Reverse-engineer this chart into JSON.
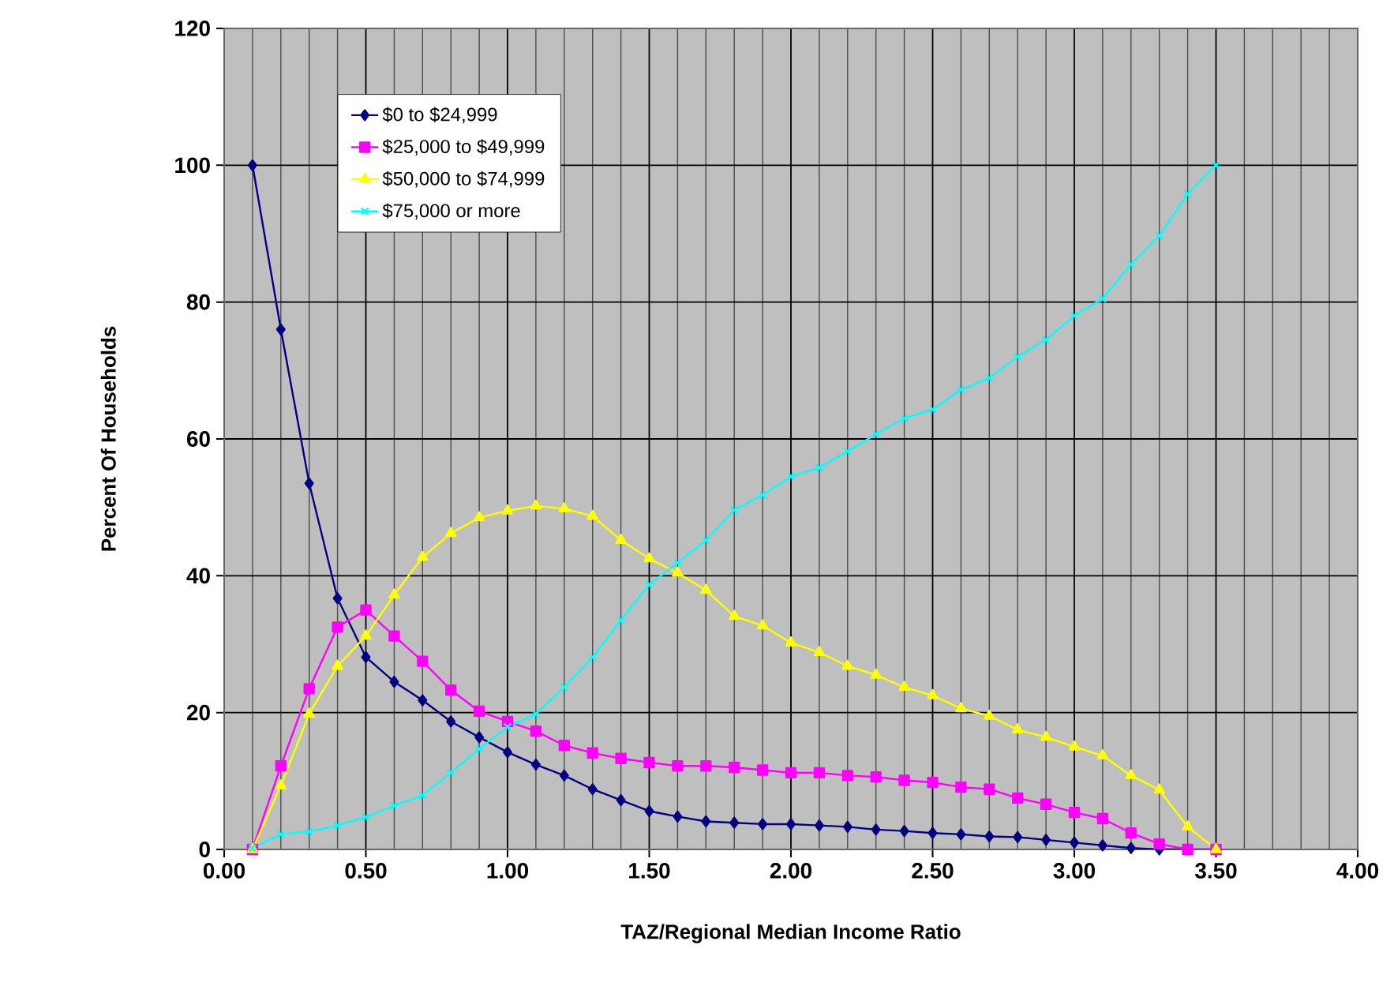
{
  "chart_data": {
    "type": "line",
    "xlabel": "TAZ/Regional Median Income Ratio",
    "ylabel": "Percent Of Households",
    "x": [
      0.1,
      0.2,
      0.3,
      0.4,
      0.5,
      0.6,
      0.7,
      0.8,
      0.9,
      1.0,
      1.1,
      1.2,
      1.3,
      1.4,
      1.5,
      1.6,
      1.7,
      1.8,
      1.9,
      2.0,
      2.1,
      2.2,
      2.3,
      2.4,
      2.5,
      2.6,
      2.7,
      2.8,
      2.9,
      3.0,
      3.1,
      3.2,
      3.3,
      3.4,
      3.5
    ],
    "series": [
      {
        "name": "$0 to $24,999",
        "color": "#000080",
        "marker": "diamond",
        "values": [
          100,
          76,
          53.5,
          36.7,
          28.1,
          24.5,
          21.8,
          18.7,
          16.4,
          14.2,
          12.4,
          10.8,
          8.8,
          7.2,
          5.6,
          4.8,
          4.1,
          3.9,
          3.7,
          3.7,
          3.5,
          3.3,
          2.9,
          2.7,
          2.4,
          2.2,
          1.9,
          1.8,
          1.4,
          1.0,
          0.6,
          0.2,
          0,
          0,
          0
        ]
      },
      {
        "name": "$25,000 to $49,999",
        "color": "#ff00ff",
        "marker": "square",
        "values": [
          0,
          12.2,
          23.5,
          32.5,
          35,
          31.2,
          27.5,
          23.3,
          20.2,
          18.7,
          17.3,
          15.2,
          14.1,
          13.3,
          12.7,
          12.2,
          12.2,
          12,
          11.6,
          11.2,
          11.2,
          10.8,
          10.6,
          10.1,
          9.8,
          9.1,
          8.8,
          7.5,
          6.6,
          5.4,
          4.5,
          2.4,
          0.8,
          0,
          0
        ]
      },
      {
        "name": "$50,000 to $74,999",
        "color": "#ffff00",
        "marker": "triangle",
        "values": [
          0,
          9.3,
          19.8,
          26.8,
          31.2,
          37.2,
          42.7,
          46.2,
          48.5,
          49.5,
          50.2,
          49.8,
          48.7,
          45.2,
          42.5,
          40.4,
          37.9,
          34.1,
          32.7,
          30.2,
          28.8,
          26.8,
          25.5,
          23.7,
          22.5,
          20.6,
          19.5,
          17.5,
          16.4,
          15,
          13.7,
          10.8,
          8.7,
          3.3,
          0
        ]
      },
      {
        "name": "$75,000 or more",
        "color": "#00ffff",
        "marker": "cross",
        "values": [
          0.2,
          2.2,
          2.6,
          3.5,
          4.7,
          6.4,
          7.9,
          11.2,
          14.7,
          17.9,
          19.8,
          23.7,
          28.1,
          33.5,
          38.7,
          41.9,
          45.2,
          49.6,
          51.8,
          54.5,
          55.8,
          58.2,
          60.7,
          63,
          64.3,
          67.2,
          68.9,
          72,
          74.5,
          78,
          80.5,
          85.5,
          89.7,
          95.8,
          100
        ]
      }
    ],
    "xlim": [
      0,
      4
    ],
    "ylim": [
      0,
      120
    ],
    "xticks": [
      {
        "value": 0,
        "label": "0.00"
      },
      {
        "value": 0.5,
        "label": "0.50"
      },
      {
        "value": 1,
        "label": "1.00"
      },
      {
        "value": 1.5,
        "label": "1.50"
      },
      {
        "value": 2,
        "label": "2.00"
      },
      {
        "value": 2.5,
        "label": "2.50"
      },
      {
        "value": 3,
        "label": "3.00"
      },
      {
        "value": 3.5,
        "label": "3.50"
      },
      {
        "value": 4,
        "label": "4.00"
      }
    ],
    "yticks": [
      0,
      20,
      40,
      60,
      80,
      100,
      120
    ],
    "grid": true,
    "legend": "top left"
  }
}
